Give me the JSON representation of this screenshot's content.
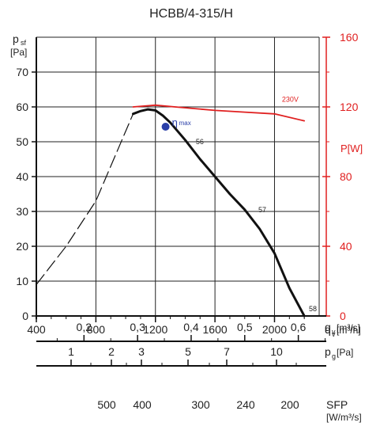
{
  "chart_data": {
    "type": "line",
    "title": "HCBB/4-315/H",
    "x_axis": {
      "label": "q",
      "label_subscript": "v",
      "unit": "[m³/h]",
      "range": [
        400,
        2300
      ],
      "ticks": [
        400,
        800,
        1200,
        1600,
        2000
      ],
      "tick_labels": [
        "400",
        "800",
        "1200",
        "1600",
        "2000"
      ]
    },
    "y_axis_left": {
      "label": "p",
      "label_subscript": "sf",
      "unit": "[Pa]",
      "range": [
        0,
        80
      ],
      "ticks": [
        0,
        10,
        20,
        30,
        40,
        50,
        60,
        70
      ],
      "tick_labels": [
        "0",
        "10",
        "20",
        "30",
        "40",
        "50",
        "60",
        "70"
      ]
    },
    "y_axis_right": {
      "label": "P[W]",
      "color": "#e02020",
      "range": [
        0,
        160
      ],
      "ticks": [
        0,
        40,
        80,
        120,
        160
      ],
      "tick_labels": [
        "0",
        "40",
        "80",
        "120",
        "160"
      ]
    },
    "secondary_scales": [
      {
        "label": "q",
        "label_subscript": "v",
        "unit": "[m³/s]",
        "ticks": [
          0.2,
          0.3,
          0.4,
          0.5,
          0.6
        ],
        "tick_labels": [
          "0,2",
          "0,3",
          "0,4",
          "0,5",
          "0,6"
        ]
      },
      {
        "label": "p",
        "label_subscript": "g",
        "unit": "[Pa]",
        "ticks": [
          1,
          2,
          3,
          5,
          7,
          10
        ],
        "tick_labels": [
          "1",
          "2",
          "3",
          "5",
          "7",
          "10"
        ]
      },
      {
        "label": "SFP",
        "unit": "[W/m³/s]",
        "ticks": [
          500,
          400,
          300,
          240,
          200
        ],
        "tick_labels": [
          "500",
          "400",
          "300",
          "240",
          "200"
        ]
      }
    ],
    "series": [
      {
        "color": "#111111",
        "style": "dashed",
        "x": [
          400,
          600,
          800,
          950,
          1050
        ],
        "y": [
          9,
          20,
          33,
          48,
          58
        ]
      },
      {
        "color": "#111111",
        "style": "solid",
        "x": [
          1050,
          1100,
          1150,
          1200,
          1250,
          1300,
          1400,
          1500,
          1600,
          1700,
          1800,
          1900,
          2000,
          2100,
          2200
        ],
        "y": [
          58,
          58.8,
          59.3,
          59,
          57.5,
          55.5,
          50.5,
          45,
          40,
          35,
          30.5,
          25,
          18,
          8,
          0
        ]
      },
      {
        "name": "230V",
        "color": "#e02020",
        "style": "solid",
        "axis": "right",
        "x": [
          1050,
          1200,
          1400,
          1600,
          1800,
          2000,
          2200
        ],
        "y": [
          120,
          121,
          119.5,
          118,
          117,
          116,
          112
        ]
      }
    ],
    "annotations": {
      "eta_max": {
        "label": "η",
        "subscript": "max",
        "x": 1300,
        "y": 55
      },
      "efficiency_labels": [
        {
          "text": "56",
          "x": 1450,
          "y": 50
        },
        {
          "text": "57",
          "x": 1870,
          "y": 30.5
        },
        {
          "text": "58",
          "x": 2210,
          "y": 2
        }
      ],
      "voltage_label": "230V"
    },
    "grid": true
  }
}
